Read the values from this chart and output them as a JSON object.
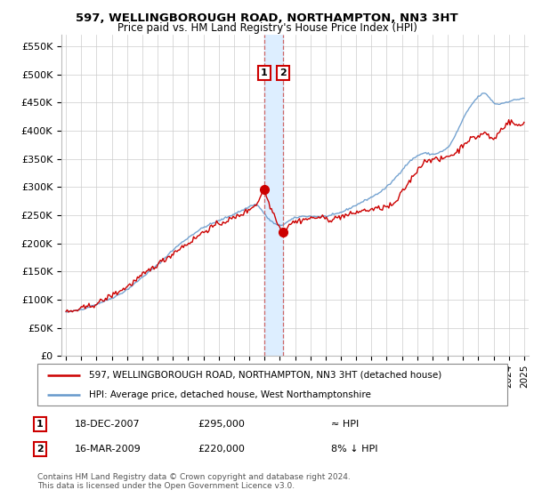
{
  "title": "597, WELLINGBOROUGH ROAD, NORTHAMPTON, NN3 3HT",
  "subtitle": "Price paid vs. HM Land Registry's House Price Index (HPI)",
  "ylabel_ticks": [
    "£0",
    "£50K",
    "£100K",
    "£150K",
    "£200K",
    "£250K",
    "£300K",
    "£350K",
    "£400K",
    "£450K",
    "£500K",
    "£550K"
  ],
  "ytick_values": [
    0,
    50000,
    100000,
    150000,
    200000,
    250000,
    300000,
    350000,
    400000,
    450000,
    500000,
    550000
  ],
  "ylim": [
    0,
    570000
  ],
  "xlim_start": 1994.7,
  "xlim_end": 2025.3,
  "legend_line1": "597, WELLINGBOROUGH ROAD, NORTHAMPTON, NN3 3HT (detached house)",
  "legend_line2": "HPI: Average price, detached house, West Northamptonshire",
  "sale1_date": "18-DEC-2007",
  "sale1_price": "£295,000",
  "sale1_hpi": "≈ HPI",
  "sale1_year": 2007.97,
  "sale1_value": 295000,
  "sale2_date": "16-MAR-2009",
  "sale2_price": "£220,000",
  "sale2_hpi": "8% ↓ HPI",
  "sale2_year": 2009.21,
  "sale2_value": 220000,
  "red_color": "#cc0000",
  "blue_color": "#6699cc",
  "span_color": "#ddeeff",
  "grid_color": "#cccccc",
  "footnote1": "Contains HM Land Registry data © Crown copyright and database right 2024.",
  "footnote2": "This data is licensed under the Open Government Licence v3.0."
}
